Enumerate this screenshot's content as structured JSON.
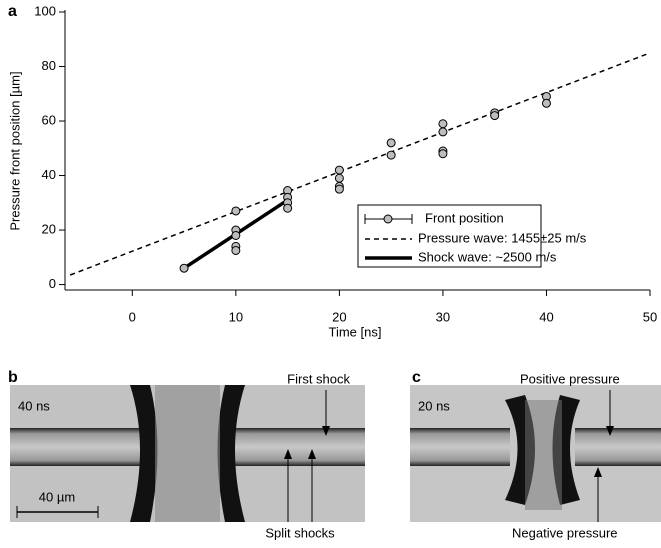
{
  "chart_data": {
    "type": "scatter",
    "panel_label": "a",
    "x_label": "Time [ns]",
    "y_label": "Pressure front position [µm]",
    "xlim": [
      -6.5,
      50
    ],
    "ylim": [
      -2,
      100
    ],
    "xticks": [
      0,
      10,
      20,
      30,
      40,
      50
    ],
    "yticks": [
      0,
      20,
      40,
      60,
      80,
      100
    ],
    "series": [
      {
        "name": "Front position",
        "type": "scatter",
        "color": "#bdbdbd",
        "x": [
          5,
          10,
          10,
          10,
          10,
          10,
          15,
          15,
          15,
          15,
          20,
          20,
          20,
          20,
          25,
          25,
          30,
          30,
          30,
          30,
          35,
          35,
          40,
          40
        ],
        "values": [
          6,
          27,
          20,
          18,
          14,
          12.5,
          34.5,
          32,
          30,
          28,
          42,
          39,
          36,
          35,
          52,
          47.5,
          59,
          56,
          49,
          48,
          63,
          62,
          69,
          66.5
        ]
      },
      {
        "name": "Pressure wave: 1455±25 m/s",
        "type": "line",
        "dash": true,
        "color": "#000000",
        "x": [
          -6,
          50
        ],
        "values": [
          3.5,
          85
        ]
      },
      {
        "name": "Shock wave: ~2500 m/s",
        "type": "line",
        "dash": false,
        "color": "#000000",
        "x": [
          5,
          15
        ],
        "values": [
          6,
          31
        ]
      }
    ]
  },
  "panel_b": {
    "label": "b",
    "time": "40 ns",
    "top_annotation": "First shock",
    "bottom_annotation": "Split shocks",
    "scale_bar": "40 µm"
  },
  "panel_c": {
    "label": "c",
    "time": "20 ns",
    "top_annotation": "Positive pressure",
    "bottom_annotation": "Negative pressure"
  }
}
